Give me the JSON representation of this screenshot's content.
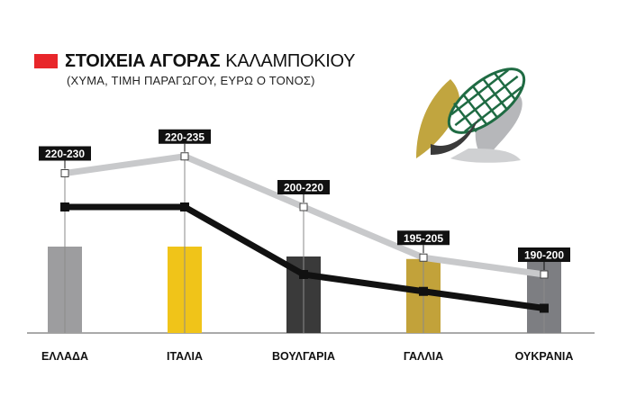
{
  "header": {
    "title_bold": "ΣΤΟΙΧΕΙΑ ΑΓΟΡΑΣ",
    "title_light": "ΚΑΛΑΜΠΟΚΙΟΥ",
    "subtitle": "(ΧΥΜΑ, ΤΙΜΗ ΠΑΡΑΓΩΓΟΥ, ΕΥΡΩ Ο ΤΟΝΟΣ)",
    "accent_color": "#e8262a"
  },
  "illustration": {
    "icon": "corn-cob-icon"
  },
  "chart_data": {
    "type": "bar",
    "title": "ΣΤΟΙΧΕΙΑ ΑΓΟΡΑΣ ΚΑΛΑΜΠΟΚΙΟΥ",
    "subtitle": "(ΧΥΜΑ, ΤΙΜΗ ΠΑΡΑΓΩΓΟΥ, ΕΥΡΩ Ο ΤΟΝΟΣ)",
    "categories": [
      "ΕΛΛΑΔΑ",
      "ΙΤΑΛΙΑ",
      "ΒΟΥΛΓΑΡΙΑ",
      "ΓΑΛΛΙΑ",
      "ΟΥΚΡΑΝΙΑ"
    ],
    "range_labels": [
      "220-230",
      "220-235",
      "200-220",
      "195-205",
      "190-200"
    ],
    "range_high": [
      230,
      235,
      220,
      205,
      200
    ],
    "range_low": [
      220,
      220,
      200,
      195,
      190
    ],
    "bar_colors": [
      "#9d9d9f",
      "#f0c419",
      "#3a3a3a",
      "#c2a23a",
      "#7d7e82"
    ],
    "line_colors": {
      "high": "#c8c9cb",
      "low": "#111111"
    },
    "grid": false,
    "legend": "none",
    "value_axis": "unlabeled"
  }
}
